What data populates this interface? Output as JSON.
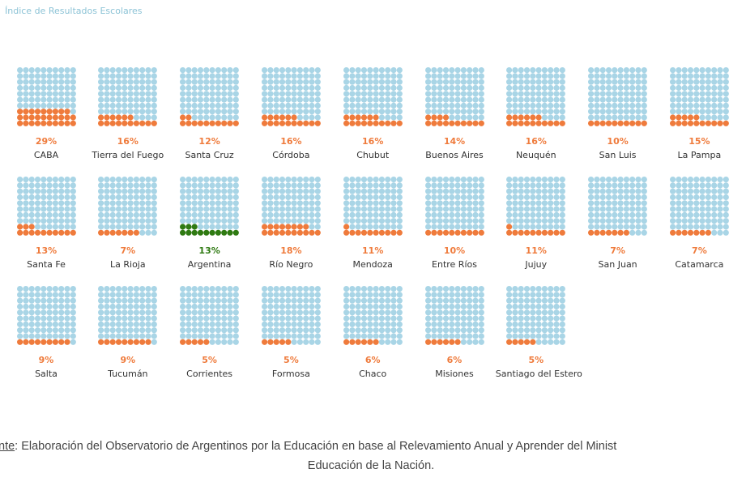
{
  "chart_data": {
    "type": "waffle",
    "title": "Índice de Resultados Escolares",
    "grid": "10x10",
    "colors": {
      "empty": "#a9d5e6",
      "filled": "#ef7b3c",
      "highlight": "#2f7a12"
    },
    "items": [
      {
        "label": "CABA",
        "value": 29,
        "pct_label": "29%"
      },
      {
        "label": "Tierra del Fuego",
        "value": 16,
        "pct_label": "16%"
      },
      {
        "label": "Santa Cruz",
        "value": 12,
        "pct_label": "12%"
      },
      {
        "label": "Córdoba",
        "value": 16,
        "pct_label": "16%"
      },
      {
        "label": "Chubut",
        "value": 16,
        "pct_label": "16%"
      },
      {
        "label": "Buenos Aires",
        "value": 14,
        "pct_label": "14%"
      },
      {
        "label": "Neuquén",
        "value": 16,
        "pct_label": "16%"
      },
      {
        "label": "San Luis",
        "value": 10,
        "pct_label": "10%"
      },
      {
        "label": "La Pampa",
        "value": 15,
        "pct_label": "15%"
      },
      {
        "label": "Santa Fe",
        "value": 13,
        "pct_label": "13%"
      },
      {
        "label": "La Rioja",
        "value": 7,
        "pct_label": "7%"
      },
      {
        "label": "Argentina",
        "value": 13,
        "pct_label": "13%",
        "highlight": true
      },
      {
        "label": "Río Negro",
        "value": 18,
        "pct_label": "18%"
      },
      {
        "label": "Mendoza",
        "value": 11,
        "pct_label": "11%"
      },
      {
        "label": "Entre Ríos",
        "value": 10,
        "pct_label": "10%"
      },
      {
        "label": "Jujuy",
        "value": 11,
        "pct_label": "11%"
      },
      {
        "label": "San Juan",
        "value": 7,
        "pct_label": "7%"
      },
      {
        "label": "Catamarca",
        "value": 7,
        "pct_label": "7%"
      },
      {
        "label": "Salta",
        "value": 9,
        "pct_label": "9%"
      },
      {
        "label": "Tucumán",
        "value": 9,
        "pct_label": "9%"
      },
      {
        "label": "Corrientes",
        "value": 5,
        "pct_label": "5%"
      },
      {
        "label": "Formosa",
        "value": 5,
        "pct_label": "5%"
      },
      {
        "label": "Chaco",
        "value": 6,
        "pct_label": "6%"
      },
      {
        "label": "Misiones",
        "value": 6,
        "pct_label": "6%"
      },
      {
        "label": "Santiago del Estero",
        "value": 5,
        "pct_label": "5%"
      }
    ]
  },
  "source": {
    "prefix": "nte",
    "line1": ": Elaboración del Observatorio de Argentinos por la Educación en base al Relevamiento Anual y Aprender del Minist",
    "line2": "Educación de la Nación."
  }
}
